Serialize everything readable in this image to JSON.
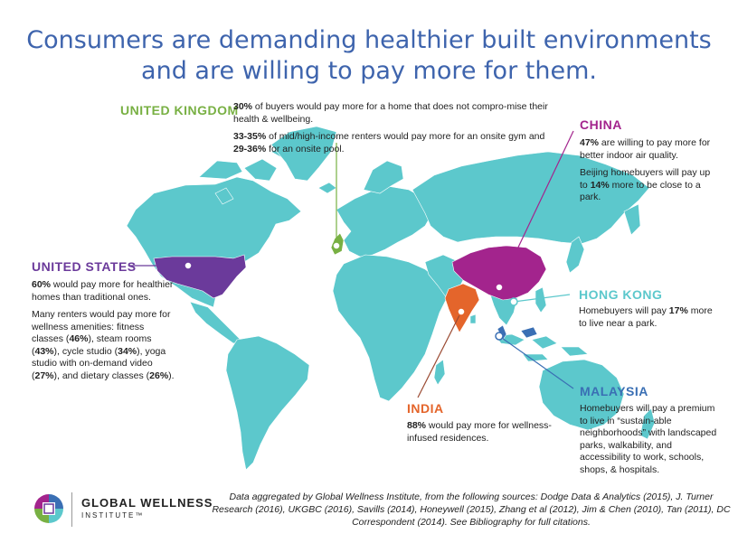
{
  "title": {
    "line1": "Consumers are demanding healthier built environments",
    "line2": "and are willing to pay more for them."
  },
  "colors": {
    "title": "#3e64ad",
    "land": "#5cc8cc",
    "us": "#6b3a9b",
    "uk": "#78b043",
    "china": "#a3248d",
    "hong_kong": "#5cc8cc",
    "india": "#e4652b",
    "malaysia": "#3a6fb4"
  },
  "regions": {
    "united_kingdom": {
      "label": "UNITED KINGDOM",
      "p1": {
        "b1": "30%",
        "t1": " of buyers would pay more for a home that does not compro-mise their health & wellbeing."
      },
      "p2": {
        "b1": "33-35%",
        "t1": " of mid/high-income renters would pay more for an onsite gym and ",
        "b2": "29-36%",
        "t2": " for an onsite pool."
      }
    },
    "china": {
      "label": "CHINA",
      "p1": {
        "b1": "47%",
        "t1": " are willing to pay more for better indoor air quality."
      },
      "p2": {
        "t0": "Beijing homebuyers will pay up to ",
        "b1": "14%",
        "t1": " more to be close to a park."
      }
    },
    "united_states": {
      "label": "UNITED STATES",
      "p1": {
        "b1": "60%",
        "t1": " would pay more for healthier homes than traditional ones."
      },
      "p2": {
        "t0": "Many renters would pay more for wellness amenities: fitness classes (",
        "b1": "46%",
        "t1": "), steam rooms (",
        "b2": "43%",
        "t2": "), cycle studio (",
        "b3": "34%",
        "t3": "), yoga studio with on-demand video (",
        "b4": "27%",
        "t4": "), and dietary classes (",
        "b5": "26%",
        "t5": ")."
      }
    },
    "hong_kong": {
      "label": "HONG KONG",
      "p1": {
        "t0": "Homebuyers will pay ",
        "b1": "17%",
        "t1": " more to live near a park."
      }
    },
    "india": {
      "label": "INDIA",
      "p1": {
        "b1": "88%",
        "t1": " would pay more for wellness-infused residences."
      }
    },
    "malaysia": {
      "label": "MALAYSIA",
      "p1": {
        "t0": "Homebuyers will pay a premium to live in “sustain-able neighborhoods” with landscaped parks, walkability, and accessibility to work, schools, shops, & hospitals."
      }
    }
  },
  "footer": {
    "logo_name": "GLOBAL WELLNESS",
    "logo_sub": "INSTITUTE™",
    "note": "Data aggregated by Global Wellness Institute, from the following sources: Dodge Data & Analytics (2015), J. Turner Research (2016), UKGBC (2016), Savills (2014), Honeywell (2015), Zhang et al (2012), Jim & Chen (2010), Tan (2011), DC Correspondent (2014). See Bibliography for full citations."
  }
}
